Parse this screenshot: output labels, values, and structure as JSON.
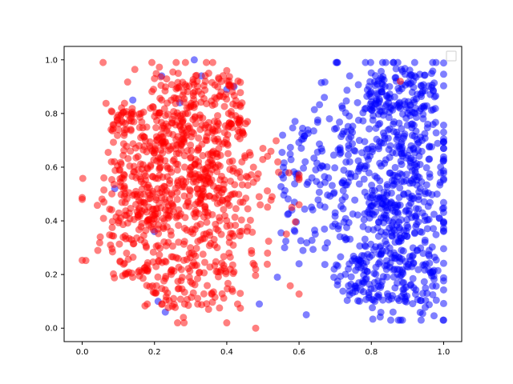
{
  "chart_data": {
    "type": "scatter",
    "title": "",
    "xlabel": "",
    "ylabel": "",
    "xlim": [
      -0.05,
      1.05
    ],
    "ylim": [
      -0.05,
      1.05
    ],
    "x_ticks": [
      "0.0",
      "0.2",
      "0.4",
      "0.6",
      "0.8",
      "1.0"
    ],
    "y_ticks": [
      "0.0",
      "0.2",
      "0.4",
      "0.6",
      "0.8",
      "1.0"
    ],
    "grid": false,
    "legend": {
      "placement": "top-right",
      "entries": []
    },
    "series": [
      {
        "color": "#0000ff",
        "marker_alpha": 0.5,
        "cluster": {
          "n": 900,
          "x_range": [
            0.52,
            1.0
          ],
          "y_range": [
            0.03,
            0.99
          ],
          "density_peak_x": 0.86,
          "density_peak_y": 0.55
        },
        "points": [
          {
            "x": 0.31,
            "y": 1.0
          },
          {
            "x": 0.84,
            "y": 0.99
          },
          {
            "x": 0.74,
            "y": 0.94
          },
          {
            "x": 0.92,
            "y": 0.94
          },
          {
            "x": 1.0,
            "y": 0.67
          },
          {
            "x": 0.96,
            "y": 0.29
          },
          {
            "x": 0.86,
            "y": 0.06
          },
          {
            "x": 0.81,
            "y": 0.1
          },
          {
            "x": 0.62,
            "y": 0.05
          },
          {
            "x": 0.54,
            "y": 0.19
          },
          {
            "x": 0.49,
            "y": 0.09
          },
          {
            "x": 0.23,
            "y": 0.06
          },
          {
            "x": 0.21,
            "y": 0.1
          },
          {
            "x": 0.2,
            "y": 0.36
          },
          {
            "x": 0.09,
            "y": 0.52
          },
          {
            "x": 0.14,
            "y": 0.85
          },
          {
            "x": 0.22,
            "y": 0.94
          },
          {
            "x": 0.27,
            "y": 0.84
          },
          {
            "x": 0.33,
            "y": 0.94
          },
          {
            "x": 0.4,
            "y": 0.89
          },
          {
            "x": 0.42,
            "y": 0.9
          },
          {
            "x": 0.67,
            "y": 0.86
          },
          {
            "x": 0.72,
            "y": 0.82
          },
          {
            "x": 0.6,
            "y": 0.24
          },
          {
            "x": 0.58,
            "y": 0.44
          },
          {
            "x": 0.56,
            "y": 0.3
          },
          {
            "x": 0.7,
            "y": 0.43
          },
          {
            "x": 0.76,
            "y": 0.15
          }
        ]
      },
      {
        "color": "#ff0000",
        "marker_alpha": 0.5,
        "cluster": {
          "n": 1000,
          "x_range": [
            0.0,
            0.6
          ],
          "y_range": [
            0.02,
            0.99
          ],
          "density_peak_x": 0.3,
          "density_peak_y": 0.55
        },
        "points": [
          {
            "x": 0.0,
            "y": 0.48
          },
          {
            "x": 0.06,
            "y": 0.47
          },
          {
            "x": 0.05,
            "y": 0.34
          },
          {
            "x": 0.06,
            "y": 0.56
          },
          {
            "x": 0.08,
            "y": 0.74
          },
          {
            "x": 0.26,
            "y": 0.99
          },
          {
            "x": 0.4,
            "y": 0.96
          },
          {
            "x": 0.35,
            "y": 0.95
          },
          {
            "x": 0.2,
            "y": 0.93
          },
          {
            "x": 0.4,
            "y": 0.02
          },
          {
            "x": 0.48,
            "y": 0.0
          },
          {
            "x": 0.28,
            "y": 0.04
          },
          {
            "x": 0.18,
            "y": 0.09
          },
          {
            "x": 0.12,
            "y": 0.2
          },
          {
            "x": 0.58,
            "y": 0.45
          },
          {
            "x": 0.6,
            "y": 0.46
          },
          {
            "x": 0.88,
            "y": 0.92
          },
          {
            "x": 0.43,
            "y": 0.09
          },
          {
            "x": 0.48,
            "y": 0.22
          },
          {
            "x": 0.5,
            "y": 0.67
          }
        ]
      }
    ]
  }
}
